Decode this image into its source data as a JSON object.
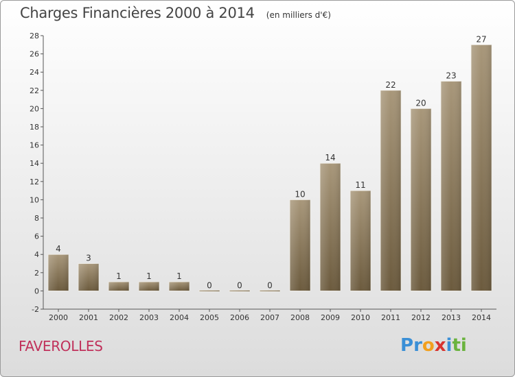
{
  "header": {
    "title": "Charges Financières 2000 à 2014",
    "unit_note": "(en milliers d'€)"
  },
  "commune_name": "FAVEROLLES",
  "brand": {
    "letters": [
      {
        "ch": "P",
        "color": "#3a8fd6"
      },
      {
        "ch": "r",
        "color": "#3a8fd6"
      },
      {
        "ch": "o",
        "color": "#f2a01e"
      },
      {
        "ch": "x",
        "color": "#d8342f"
      },
      {
        "ch": "i",
        "color": "#3a8fd6"
      },
      {
        "ch": "t",
        "color": "#6ab33e"
      },
      {
        "ch": "i",
        "color": "#6ab33e"
      }
    ]
  },
  "chart_data": {
    "type": "bar",
    "title": "Charges Financières 2000 à 2014",
    "subtitle": "(en milliers d'€)",
    "xlabel": "",
    "ylabel": "",
    "categories": [
      "2000",
      "2001",
      "2002",
      "2003",
      "2004",
      "2005",
      "2006",
      "2007",
      "2008",
      "2009",
      "2010",
      "2011",
      "2012",
      "2013",
      "2014"
    ],
    "values": [
      4,
      3,
      1,
      1,
      1,
      0,
      0,
      0,
      10,
      14,
      11,
      22,
      20,
      23,
      27
    ],
    "ylim": [
      -2,
      28
    ],
    "yticks": [
      -2,
      0,
      2,
      4,
      6,
      8,
      10,
      12,
      14,
      16,
      18,
      20,
      22,
      24,
      26,
      28
    ],
    "grid": false,
    "legend": "none",
    "colors": {
      "bar_top": "#a8977a",
      "bar_bottom": "#6b5a3d",
      "axis": "#555555",
      "label": "#333333"
    }
  }
}
